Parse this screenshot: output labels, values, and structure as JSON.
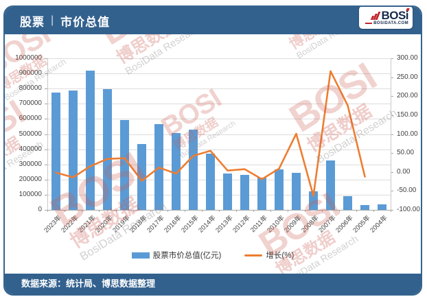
{
  "header": {
    "section": "股票",
    "divider": "|",
    "title": "市价总值"
  },
  "logo": {
    "brand": "BOSi",
    "site": "BOSIDATA.COM"
  },
  "footer": {
    "source": "数据来源：统计局、博思数据整理"
  },
  "watermark": {
    "brand": "BOSI",
    "cn": "博思数据",
    "en": "BosiData Research"
  },
  "colors": {
    "header_blue": "#33618E",
    "bar_blue": "#5B9BD5",
    "line_orange": "#ED7D31",
    "logo_red": "#C0272D"
  },
  "chart_data": {
    "type": "bar",
    "subtype": "bar-line-combo",
    "title": "股票市价总值",
    "grid": true,
    "legend_position": "bottom",
    "categories": [
      "2023年",
      "2022年",
      "2021年",
      "2020年",
      "2019年",
      "2018年",
      "2017年",
      "2016年",
      "2015年",
      "2014年",
      "2013年",
      "2012年",
      "2011年",
      "2010年",
      "2009年",
      "2008年",
      "2007年",
      "2006年",
      "2005年",
      "2004年"
    ],
    "series": [
      {
        "name": "股票市价总值(亿元)",
        "type": "bar",
        "axis": "left",
        "color": "#5B9BD5",
        "values": [
          774680,
          787744,
          918086,
          797188,
          592935,
          434924,
          567086,
          507686,
          531463,
          372547,
          239077,
          230358,
          214758,
          265423,
          243939,
          121366,
          327141,
          89404,
          32430,
          37056
        ]
      },
      {
        "name": "增长(%)",
        "type": "line",
        "axis": "right",
        "color": "#ED7D31",
        "values": [
          -1.66,
          -14.2,
          15.17,
          34.45,
          36.33,
          -23.31,
          11.7,
          -4.47,
          42.66,
          55.83,
          3.78,
          7.26,
          -19.09,
          8.81,
          100.99,
          -62.9,
          265.91,
          175.68,
          -12.48,
          null
        ]
      }
    ],
    "left_axis": {
      "min": 0,
      "max": 1000000,
      "step": 100000,
      "tick_labels": [
        "1000000",
        "900000",
        "800000",
        "700000",
        "600000",
        "500000",
        "400000",
        "300000",
        "200000",
        "100000",
        "0"
      ]
    },
    "right_axis": {
      "min": -100,
      "max": 300,
      "step": 50,
      "tick_labels": [
        "300.00",
        "250.00",
        "200.00",
        "150.00",
        "100.00",
        "50.00",
        "0.00",
        "-50.00",
        "-100.00"
      ]
    }
  }
}
